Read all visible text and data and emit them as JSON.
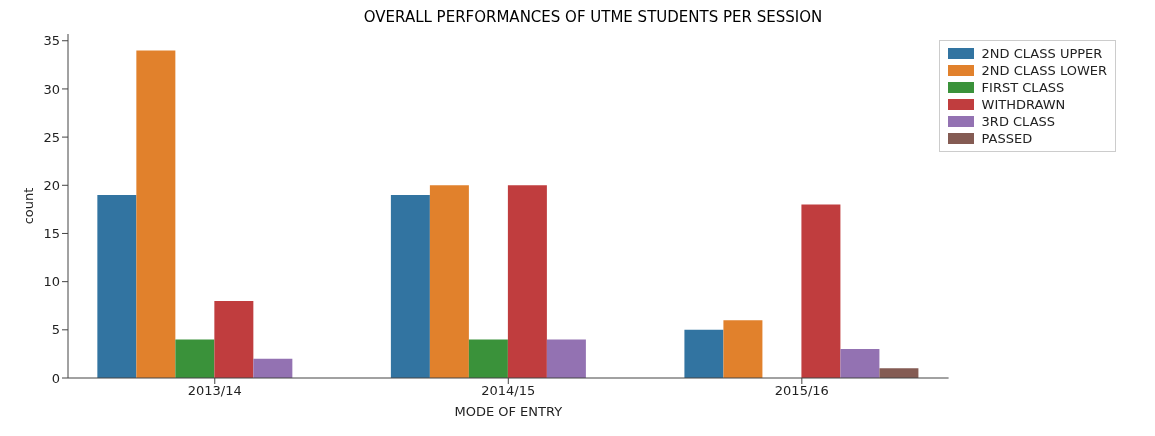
{
  "chart_data": {
    "type": "bar",
    "title": "OVERALL PERFORMANCES OF UTME STUDENTS PER SESSION",
    "xlabel": "MODE OF ENTRY",
    "ylabel": "count",
    "categories": [
      "2013/14",
      "2014/15",
      "2015/16"
    ],
    "series": [
      {
        "name": "2ND CLASS UPPER",
        "color": "#3274a1",
        "values": [
          19,
          19,
          5
        ]
      },
      {
        "name": "2ND CLASS LOWER",
        "color": "#e1812c",
        "values": [
          34,
          20,
          6
        ]
      },
      {
        "name": "FIRST CLASS",
        "color": "#3a923a",
        "values": [
          4,
          4,
          null
        ]
      },
      {
        "name": "WITHDRAWN",
        "color": "#c03d3e",
        "values": [
          8,
          20,
          18
        ]
      },
      {
        "name": "3RD CLASS",
        "color": "#9372b2",
        "values": [
          2,
          4,
          3
        ]
      },
      {
        "name": "PASSED",
        "color": "#845b53",
        "values": [
          null,
          null,
          1
        ]
      }
    ],
    "ylim": [
      0,
      35.7
    ],
    "yticks": [
      0,
      5,
      10,
      15,
      20,
      25,
      30,
      35
    ],
    "grid": false,
    "legend": "top right"
  }
}
